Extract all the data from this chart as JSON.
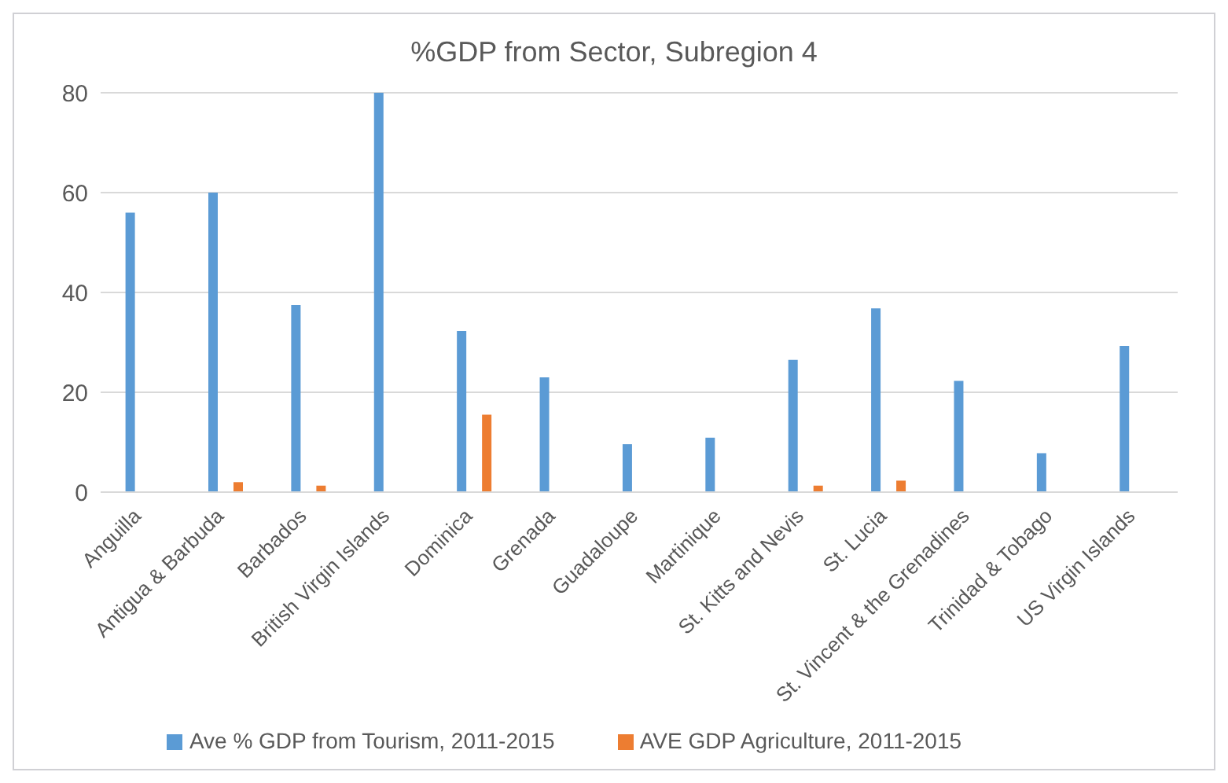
{
  "chart_data": {
    "type": "bar",
    "title": "%GDP from Sector, Subregion 4",
    "categories": [
      "Anguilla",
      "Antigua & Barbuda",
      "Barbados",
      "British Virgin Islands",
      "Dominica",
      "Grenada",
      "Guadaloupe",
      "Martinique",
      "St. Kitts and Nevis",
      "St. Lucia",
      "St. Vincent & the Grenadines",
      "Trinidad & Tobago",
      "US Virgin Islands"
    ],
    "series": [
      {
        "name": "Ave  % GDP from Tourism, 2011-2015",
        "color": "#5b9bd5",
        "values": [
          56,
          60,
          37.5,
          80,
          32.3,
          23,
          9.6,
          10.9,
          26.5,
          36.8,
          22.3,
          7.8,
          29.3
        ]
      },
      {
        "name": "AVE GDP Agriculture, 2011-2015",
        "color": "#ed7d31",
        "values": [
          null,
          2,
          1.3,
          null,
          15.5,
          null,
          null,
          null,
          1.3,
          2.3,
          null,
          null,
          null
        ]
      }
    ],
    "ylim": [
      0,
      80
    ],
    "yticks": [
      0,
      20,
      40,
      60,
      80
    ],
    "grid": "y",
    "legend": "bottom"
  }
}
